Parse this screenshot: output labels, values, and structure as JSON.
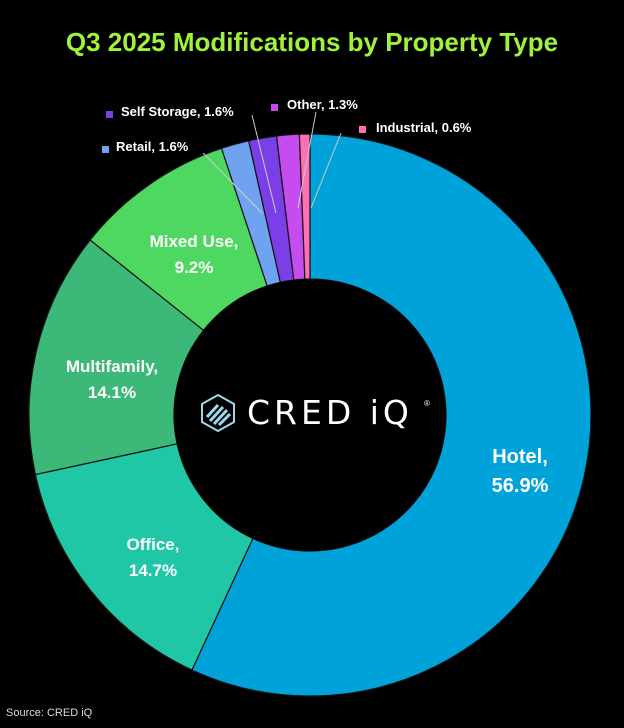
{
  "chart_data": {
    "type": "pie",
    "title": "Q3 2025 Modifications by Property Type",
    "slices": [
      {
        "label": "Hotel",
        "value": 56.9,
        "display": [
          "Hotel,",
          "56.9%"
        ],
        "color": "#00a2da"
      },
      {
        "label": "Office",
        "value": 14.7,
        "display": [
          "Office,",
          "14.7%"
        ],
        "color": "#20c7a6"
      },
      {
        "label": "Multifamily",
        "value": 14.1,
        "display": [
          "Multifamily,",
          "14.1%"
        ],
        "color": "#3cb878"
      },
      {
        "label": "Mixed Use",
        "value": 9.2,
        "display": [
          "Mixed Use,",
          "9.2%"
        ],
        "color": "#4ed862"
      },
      {
        "label": "Retail",
        "value": 1.6,
        "display": [
          "Retail, 1.6%"
        ],
        "color": "#6fa3f2"
      },
      {
        "label": "Self Storage",
        "value": 1.6,
        "display": [
          "Self Storage, 1.6%"
        ],
        "color": "#7a3fe6"
      },
      {
        "label": "Other",
        "value": 1.3,
        "display": [
          "Other, 1.3%"
        ],
        "color": "#c64cf0"
      },
      {
        "label": "Industrial",
        "value": 0.6,
        "display": [
          "Industrial, 0.6%"
        ],
        "color": "#ff6fb2"
      }
    ]
  },
  "logo": {
    "text": "CRED iQ",
    "mark": "cred-iq-logo-icon",
    "reg": "®"
  },
  "source": "Source: CRED iQ"
}
